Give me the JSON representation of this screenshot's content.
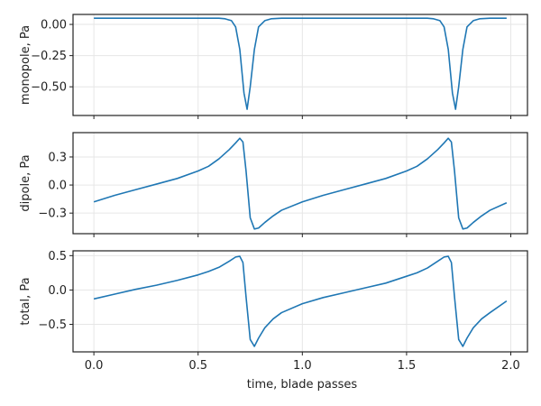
{
  "chart_data": [
    {
      "type": "line",
      "title": "",
      "xlabel": "",
      "ylabel": "monopole, Pa",
      "xlim": [
        -0.1,
        2.08
      ],
      "ylim": [
        -0.73,
        0.08
      ],
      "grid": true,
      "xticks": [
        0,
        0.5,
        1,
        1.5,
        2
      ],
      "xtick_labels": [
        "",
        "",
        "",
        "",
        ""
      ],
      "yticks": [
        0,
        -0.25,
        -0.5
      ],
      "ytick_labels": [
        "0.00",
        "−0.25",
        "−0.50"
      ],
      "color": "#1f77b4",
      "x": [
        0,
        0.5,
        0.6,
        0.63,
        0.66,
        0.68,
        0.7,
        0.72,
        0.735,
        0.75,
        0.77,
        0.79,
        0.82,
        0.85,
        0.9,
        1.0,
        1.5,
        1.6,
        1.63,
        1.66,
        1.68,
        1.7,
        1.72,
        1.735,
        1.75,
        1.77,
        1.79,
        1.82,
        1.85,
        1.9,
        1.98
      ],
      "y": [
        0.05,
        0.05,
        0.05,
        0.045,
        0.03,
        -0.02,
        -0.2,
        -0.55,
        -0.68,
        -0.5,
        -0.2,
        -0.02,
        0.03,
        0.045,
        0.05,
        0.05,
        0.05,
        0.05,
        0.045,
        0.03,
        -0.02,
        -0.2,
        -0.55,
        -0.68,
        -0.5,
        -0.2,
        -0.02,
        0.03,
        0.045,
        0.05,
        0.05
      ]
    },
    {
      "type": "line",
      "title": "",
      "xlabel": "",
      "ylabel": "dipole, Pa",
      "xlim": [
        -0.1,
        2.08
      ],
      "ylim": [
        -0.52,
        0.56
      ],
      "grid": true,
      "xticks": [
        0,
        0.5,
        1,
        1.5,
        2
      ],
      "xtick_labels": [
        "",
        "",
        "",
        "",
        ""
      ],
      "yticks": [
        0.3,
        0,
        -0.3
      ],
      "ytick_labels": [
        "0.3",
        "0.0",
        "−0.3"
      ],
      "color": "#1f77b4",
      "x": [
        0,
        0.1,
        0.2,
        0.3,
        0.4,
        0.5,
        0.55,
        0.6,
        0.65,
        0.68,
        0.7,
        0.715,
        0.73,
        0.75,
        0.77,
        0.79,
        0.82,
        0.86,
        0.9,
        1.0,
        1.1,
        1.2,
        1.3,
        1.4,
        1.5,
        1.55,
        1.6,
        1.65,
        1.68,
        1.7,
        1.715,
        1.73,
        1.75,
        1.77,
        1.79,
        1.82,
        1.86,
        1.9,
        1.98
      ],
      "y": [
        -0.18,
        -0.11,
        -0.05,
        0.01,
        0.07,
        0.15,
        0.2,
        0.28,
        0.38,
        0.45,
        0.5,
        0.46,
        0.15,
        -0.35,
        -0.47,
        -0.46,
        -0.4,
        -0.33,
        -0.27,
        -0.18,
        -0.11,
        -0.05,
        0.01,
        0.07,
        0.15,
        0.2,
        0.28,
        0.38,
        0.45,
        0.5,
        0.46,
        0.15,
        -0.35,
        -0.47,
        -0.46,
        -0.4,
        -0.33,
        -0.27,
        -0.19
      ]
    },
    {
      "type": "line",
      "title": "",
      "xlabel": "time, blade passes",
      "ylabel": "total, Pa",
      "xlim": [
        -0.1,
        2.08
      ],
      "ylim": [
        -0.9,
        0.57
      ],
      "grid": true,
      "xticks": [
        0,
        0.5,
        1,
        1.5,
        2
      ],
      "xtick_labels": [
        "0.0",
        "0.5",
        "1.0",
        "1.5",
        "2.0"
      ],
      "yticks": [
        0.5,
        0,
        -0.5
      ],
      "ytick_labels": [
        "0.5",
        "0.0",
        "−0.5"
      ],
      "color": "#1f77b4",
      "x": [
        0,
        0.1,
        0.2,
        0.3,
        0.4,
        0.5,
        0.55,
        0.6,
        0.65,
        0.68,
        0.7,
        0.715,
        0.73,
        0.75,
        0.77,
        0.79,
        0.82,
        0.86,
        0.9,
        1.0,
        1.1,
        1.2,
        1.3,
        1.4,
        1.5,
        1.55,
        1.6,
        1.65,
        1.68,
        1.7,
        1.715,
        1.73,
        1.75,
        1.77,
        1.79,
        1.82,
        1.86,
        1.9,
        1.98
      ],
      "y": [
        -0.13,
        -0.06,
        0.01,
        0.07,
        0.14,
        0.22,
        0.27,
        0.33,
        0.42,
        0.48,
        0.49,
        0.4,
        -0.1,
        -0.72,
        -0.82,
        -0.7,
        -0.55,
        -0.42,
        -0.33,
        -0.2,
        -0.11,
        -0.04,
        0.03,
        0.1,
        0.2,
        0.25,
        0.32,
        0.42,
        0.48,
        0.49,
        0.4,
        -0.1,
        -0.72,
        -0.82,
        -0.7,
        -0.55,
        -0.42,
        -0.33,
        -0.16
      ]
    }
  ]
}
